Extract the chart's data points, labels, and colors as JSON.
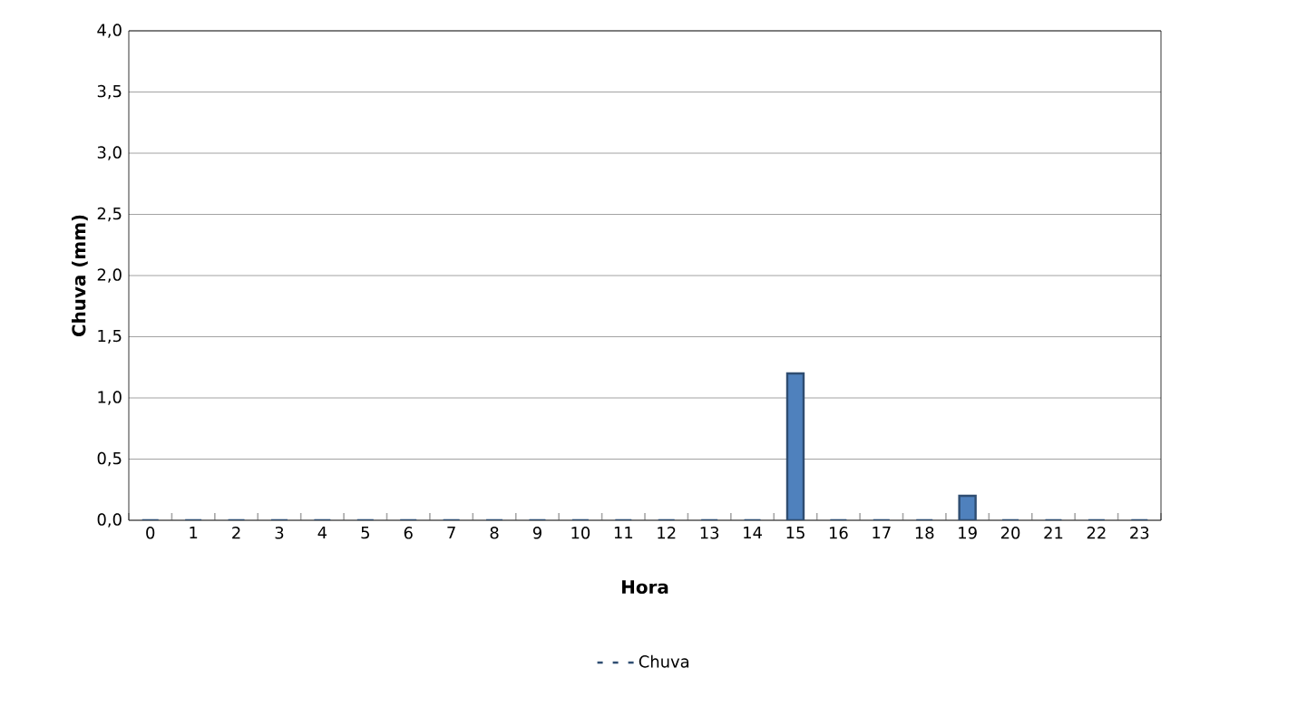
{
  "chart_data": {
    "type": "bar",
    "categories": [
      "0",
      "1",
      "2",
      "3",
      "4",
      "5",
      "6",
      "7",
      "8",
      "9",
      "10",
      "11",
      "12",
      "13",
      "14",
      "15",
      "16",
      "17",
      "18",
      "19",
      "20",
      "21",
      "22",
      "23"
    ],
    "series": [
      {
        "name": "Chuva",
        "color": "#4f81bd",
        "values": [
          0,
          0,
          0,
          0,
          0,
          0,
          0,
          0,
          0,
          0,
          0,
          0,
          0,
          0,
          0,
          1.2,
          0,
          0,
          0,
          0.2,
          0,
          0,
          0,
          0
        ]
      }
    ],
    "xlabel": "Hora",
    "ylabel": "Chuva (mm)",
    "ylim": [
      0,
      4
    ],
    "yticks": [
      {
        "value": 0,
        "label": "0,0"
      },
      {
        "value": 0.5,
        "label": "0,5"
      },
      {
        "value": 1,
        "label": "1,0"
      },
      {
        "value": 1.5,
        "label": "1,5"
      },
      {
        "value": 2,
        "label": "2,0"
      },
      {
        "value": 2.5,
        "label": "2,5"
      },
      {
        "value": 3,
        "label": "3,0"
      },
      {
        "value": 3.5,
        "label": "3,5"
      },
      {
        "value": 4,
        "label": "4,0"
      }
    ],
    "grid": "y",
    "legend": "bottom"
  }
}
